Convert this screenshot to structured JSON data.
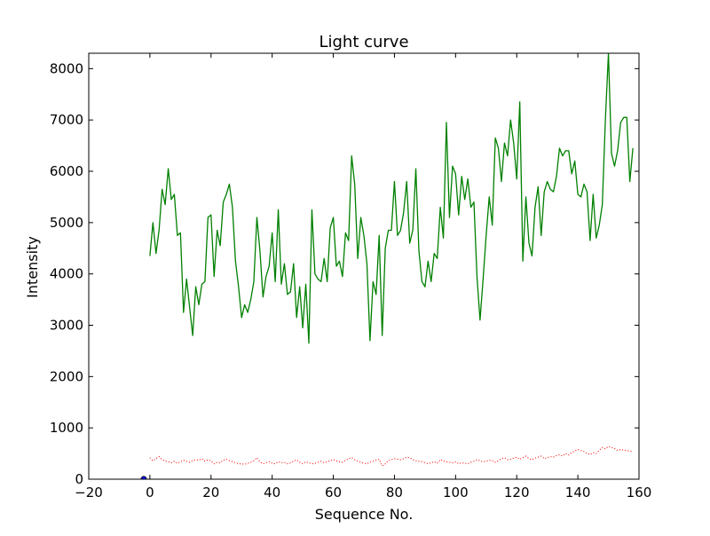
{
  "chart_data": {
    "type": "line",
    "title": "Light curve",
    "xlabel": "Sequence No.",
    "ylabel": "Intensity",
    "xlim": [
      -20,
      160
    ],
    "ylim": [
      0,
      8300
    ],
    "xticks": [
      -20,
      0,
      20,
      40,
      60,
      80,
      100,
      120,
      140,
      160
    ],
    "yticks": [
      0,
      1000,
      2000,
      3000,
      4000,
      5000,
      6000,
      7000,
      8000
    ],
    "grid": false,
    "series": [
      {
        "color": "#008000",
        "style": "solid",
        "x": [
          0,
          1,
          2,
          3,
          4,
          5,
          6,
          7,
          8,
          9,
          10,
          11,
          12,
          13,
          14,
          15,
          16,
          17,
          18,
          19,
          20,
          21,
          22,
          23,
          24,
          25,
          26,
          27,
          28,
          29,
          30,
          31,
          32,
          33,
          34,
          35,
          36,
          37,
          38,
          39,
          40,
          41,
          42,
          43,
          44,
          45,
          46,
          47,
          48,
          49,
          50,
          51,
          52,
          53,
          54,
          55,
          56,
          57,
          58,
          59,
          60,
          61,
          62,
          63,
          64,
          65,
          66,
          67,
          68,
          69,
          70,
          71,
          72,
          73,
          74,
          75,
          76,
          77,
          78,
          79,
          80,
          81,
          82,
          83,
          84,
          85,
          86,
          87,
          88,
          89,
          90,
          91,
          92,
          93,
          94,
          95,
          96,
          97,
          98,
          99,
          100,
          101,
          102,
          103,
          104,
          105,
          106,
          107,
          108,
          109,
          110,
          111,
          112,
          113,
          114,
          115,
          116,
          117,
          118,
          119,
          120,
          121,
          122,
          123,
          124,
          125,
          126,
          127,
          128,
          129,
          130,
          131,
          132,
          133,
          134,
          135,
          136,
          137,
          138,
          139,
          140,
          141,
          142,
          143,
          144,
          145,
          146,
          147,
          148,
          149,
          150,
          151,
          152,
          153,
          154,
          155,
          156,
          157,
          158
        ],
        "y": [
          4350,
          5000,
          4400,
          4850,
          5650,
          5350,
          6050,
          5450,
          5550,
          4750,
          4800,
          3250,
          3900,
          3350,
          2800,
          3750,
          3400,
          3800,
          3850,
          5100,
          5150,
          3950,
          4850,
          4550,
          5400,
          5550,
          5750,
          5300,
          4250,
          3750,
          3150,
          3400,
          3250,
          3500,
          3850,
          5100,
          4450,
          3550,
          3950,
          4150,
          4800,
          3850,
          5250,
          3800,
          4200,
          3600,
          3650,
          4200,
          3150,
          3750,
          2950,
          3800,
          2650,
          5250,
          4000,
          3900,
          3850,
          4300,
          3850,
          4900,
          5100,
          4150,
          4250,
          3950,
          4800,
          4650,
          6300,
          5750,
          4300,
          5100,
          4750,
          4200,
          2700,
          3850,
          3600,
          4750,
          2800,
          4500,
          4850,
          4850,
          5800,
          4750,
          4850,
          5200,
          5800,
          4600,
          4850,
          6050,
          4450,
          3850,
          3750,
          4250,
          3850,
          4400,
          4300,
          5300,
          4700,
          6950,
          5100,
          6100,
          5950,
          5150,
          5900,
          5450,
          5850,
          5300,
          5400,
          3950,
          3100,
          3900,
          4750,
          5500,
          4950,
          6650,
          6450,
          5800,
          6550,
          6300,
          7000,
          6550,
          5850,
          7350,
          4250,
          5500,
          4600,
          4350,
          5300,
          5700,
          4750,
          5600,
          5800,
          5650,
          5600,
          5900,
          6450,
          6300,
          6400,
          6400,
          5950,
          6200,
          5550,
          5500,
          5750,
          5600,
          4650,
          5550,
          4700,
          4950,
          5350,
          7000,
          8300,
          6350,
          6100,
          6400,
          6950,
          7050,
          7050,
          5800,
          6450
        ]
      },
      {
        "color": "#ff0000",
        "style": "dotted",
        "x": [
          0,
          1,
          2,
          3,
          4,
          5,
          6,
          7,
          8,
          9,
          10,
          11,
          12,
          13,
          14,
          15,
          16,
          17,
          18,
          19,
          20,
          21,
          22,
          23,
          24,
          25,
          26,
          27,
          28,
          29,
          30,
          31,
          32,
          33,
          34,
          35,
          36,
          37,
          38,
          39,
          40,
          41,
          42,
          43,
          44,
          45,
          46,
          47,
          48,
          49,
          50,
          51,
          52,
          53,
          54,
          55,
          56,
          57,
          58,
          59,
          60,
          61,
          62,
          63,
          64,
          65,
          66,
          67,
          68,
          69,
          70,
          71,
          72,
          73,
          74,
          75,
          76,
          77,
          78,
          79,
          80,
          81,
          82,
          83,
          84,
          85,
          86,
          87,
          88,
          89,
          90,
          91,
          92,
          93,
          94,
          95,
          96,
          97,
          98,
          99,
          100,
          101,
          102,
          103,
          104,
          105,
          106,
          107,
          108,
          109,
          110,
          111,
          112,
          113,
          114,
          115,
          116,
          117,
          118,
          119,
          120,
          121,
          122,
          123,
          124,
          125,
          126,
          127,
          128,
          129,
          130,
          131,
          132,
          133,
          134,
          135,
          136,
          137,
          138,
          139,
          140,
          141,
          142,
          143,
          144,
          145,
          146,
          147,
          148,
          149,
          150,
          151,
          152,
          153,
          154,
          155,
          156,
          157,
          158
        ],
        "y": [
          420,
          360,
          400,
          440,
          380,
          360,
          340,
          320,
          350,
          310,
          340,
          370,
          350,
          330,
          360,
          380,
          370,
          400,
          350,
          380,
          360,
          300,
          330,
          320,
          370,
          390,
          360,
          340,
          320,
          300,
          300,
          290,
          310,
          330,
          360,
          420,
          340,
          300,
          320,
          340,
          310,
          300,
          340,
          320,
          330,
          300,
          320,
          350,
          380,
          330,
          300,
          340,
          320,
          300,
          310,
          330,
          350,
          320,
          340,
          360,
          380,
          360,
          340,
          330,
          370,
          400,
          420,
          380,
          350,
          330,
          310,
          300,
          330,
          350,
          370,
          390,
          260,
          300,
          360,
          380,
          400,
          390,
          380,
          400,
          430,
          420,
          380,
          360,
          350,
          340,
          320,
          300,
          320,
          340,
          310,
          380,
          360,
          340,
          330,
          320,
          340,
          300,
          320,
          310,
          300,
          330,
          350,
          380,
          360,
          340,
          350,
          370,
          360,
          330,
          360,
          400,
          420,
          380,
          390,
          410,
          430,
          390,
          420,
          450,
          400,
          380,
          410,
          430,
          450,
          400,
          420,
          440,
          430,
          460,
          480,
          450,
          500,
          470,
          520,
          550,
          580,
          560,
          540,
          500,
          480,
          520,
          500,
          560,
          620,
          590,
          640,
          620,
          600,
          560,
          580,
          570,
          560,
          550,
          540
        ]
      },
      {
        "color": "#0000ff",
        "style": "marker",
        "x": [
          -2
        ],
        "y": [
          0
        ]
      }
    ]
  }
}
